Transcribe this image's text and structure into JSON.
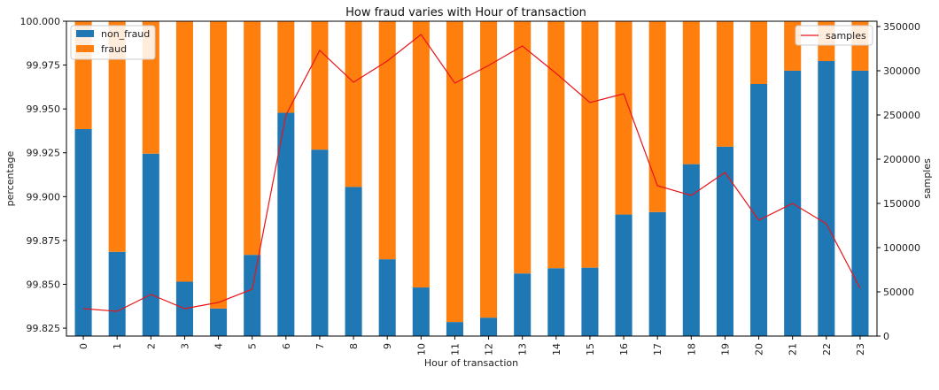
{
  "chart_data": {
    "type": "bar",
    "stacked": true,
    "title": "How fraud varies with Hour of transaction",
    "xlabel": "Hour of transaction",
    "ylabel": "percentage",
    "y2label": "samples",
    "categories": [
      "0",
      "1",
      "2",
      "3",
      "4",
      "5",
      "6",
      "7",
      "8",
      "9",
      "10",
      "11",
      "12",
      "13",
      "14",
      "15",
      "16",
      "17",
      "18",
      "19",
      "20",
      "21",
      "22",
      "23"
    ],
    "ylim": [
      99.8205,
      100.0
    ],
    "y_ticks": [
      "99.825",
      "99.850",
      "99.875",
      "99.900",
      "99.925",
      "99.950",
      "99.975",
      "100.000"
    ],
    "y2lim": [
      0,
      356000
    ],
    "y2_ticks": [
      "0",
      "50000",
      "100000",
      "150000",
      "200000",
      "250000",
      "300000",
      "350000"
    ],
    "grid": false,
    "series": [
      {
        "name": "non_fraud",
        "color": "#1f77b4",
        "values": [
          99.9385,
          99.8685,
          99.9245,
          99.8515,
          99.8362,
          99.8668,
          99.9478,
          99.9268,
          99.9055,
          99.8643,
          99.8482,
          99.8285,
          99.831,
          99.8562,
          99.8592,
          99.8595,
          99.8898,
          99.8912,
          99.9185,
          99.9285,
          99.9642,
          99.9718,
          99.9773,
          99.9718
        ]
      },
      {
        "name": "fraud",
        "color": "#ff7f0e",
        "values": [
          0.0615,
          0.1315,
          0.0755,
          0.1485,
          0.1638,
          0.1332,
          0.0522,
          0.0732,
          0.0945,
          0.1357,
          0.1518,
          0.1715,
          0.169,
          0.1438,
          0.1408,
          0.1405,
          0.1102,
          0.1088,
          0.0815,
          0.0715,
          0.0358,
          0.0282,
          0.0227,
          0.0282
        ]
      },
      {
        "name": "samples",
        "type": "line",
        "axis": "right",
        "color": "#e8141a",
        "values": [
          31000,
          28000,
          47000,
          31000,
          38000,
          53000,
          250000,
          323000,
          287000,
          311000,
          341000,
          286000,
          306000,
          328000,
          297000,
          264000,
          274000,
          170000,
          159000,
          185000,
          131000,
          150000,
          127000,
          54000
        ]
      }
    ],
    "legend_left": "top-left",
    "legend_right": "top-right"
  }
}
